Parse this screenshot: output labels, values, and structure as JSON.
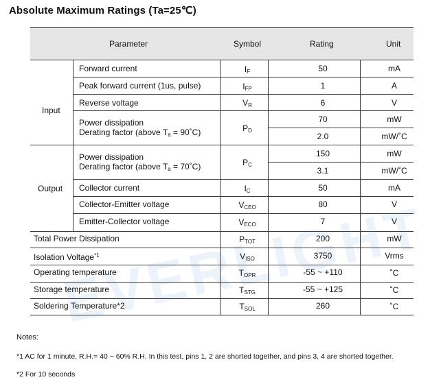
{
  "title": "Absolute Maximum Ratings (Ta=25℃)",
  "watermark": "EVERLIGHT",
  "header": {
    "parameter": "Parameter",
    "symbol": "Symbol",
    "rating": "Rating",
    "unit": "Unit"
  },
  "groups": {
    "input": "Input",
    "output": "Output"
  },
  "rows": {
    "forward_current": {
      "param": "Forward current",
      "sym": "I",
      "sub": "F",
      "rating": "50",
      "unit": "mA"
    },
    "peak_forward_current": {
      "param": "Peak forward current (1us, pulse)",
      "sym": "I",
      "sub": "FP",
      "rating": "1",
      "unit": "A"
    },
    "reverse_voltage": {
      "param": "Reverse voltage",
      "sym": "V",
      "sub": "R",
      "rating": "6",
      "unit": "V"
    },
    "input_power": {
      "param1": "Power dissipation",
      "param2": "Derating factor (above T",
      "param2_sub": "a",
      "param2_end": " = 90˚C)",
      "sym": "P",
      "sub": "D",
      "rating1": "70",
      "unit1": "mW",
      "rating2": "2.0",
      "unit2": "mW/˚C"
    },
    "output_power": {
      "param1": "Power dissipation",
      "param2": "Derating factor (above T",
      "param2_sub": "a",
      "param2_end": " = 70˚C)",
      "sym": "P",
      "sub": "C",
      "rating1": "150",
      "unit1": "mW",
      "rating2": "3.1",
      "unit2": "mW/˚C"
    },
    "collector_current": {
      "param": "Collector current",
      "sym": "I",
      "sub": "C",
      "rating": "50",
      "unit": "mA"
    },
    "ce_voltage": {
      "param": "Collector-Emitter voltage",
      "sym": "V",
      "sub": "CEO",
      "rating": "80",
      "unit": "V"
    },
    "ec_voltage": {
      "param": "Emitter-Collector voltage",
      "sym": "V",
      "sub": "ECO",
      "rating": "7",
      "unit": "V"
    },
    "total_power": {
      "param": "Total Power Dissipation",
      "sym": "P",
      "sub": "TOT",
      "rating": "200",
      "unit": "mW"
    },
    "isolation": {
      "param": "Isolation Voltage",
      "sup": "*1",
      "sym": "V",
      "sub": "ISO",
      "rating": "3750",
      "unit": "Vrms"
    },
    "operating": {
      "param": "Operating temperature",
      "sym": "T",
      "sub": "OPR",
      "rating": "-55 ~ +110",
      "unit": "˚C"
    },
    "storage": {
      "param": "Storage temperature",
      "sym": "T",
      "sub": "STG",
      "rating": "-55 ~ +125",
      "unit": "˚C"
    },
    "soldering": {
      "param": "Soldering Temperature*2",
      "sym": "T",
      "sub": "SOL",
      "rating": "260",
      "unit": "˚C"
    }
  },
  "notes": {
    "heading": "Notes:",
    "note1": "*1 AC for 1 minute, R.H.= 40 ~ 60% R.H. In this test, pins 1, 2 are shorted together, and pins 3, 4 are shorted together.",
    "note2": "*2 For 10 seconds"
  }
}
